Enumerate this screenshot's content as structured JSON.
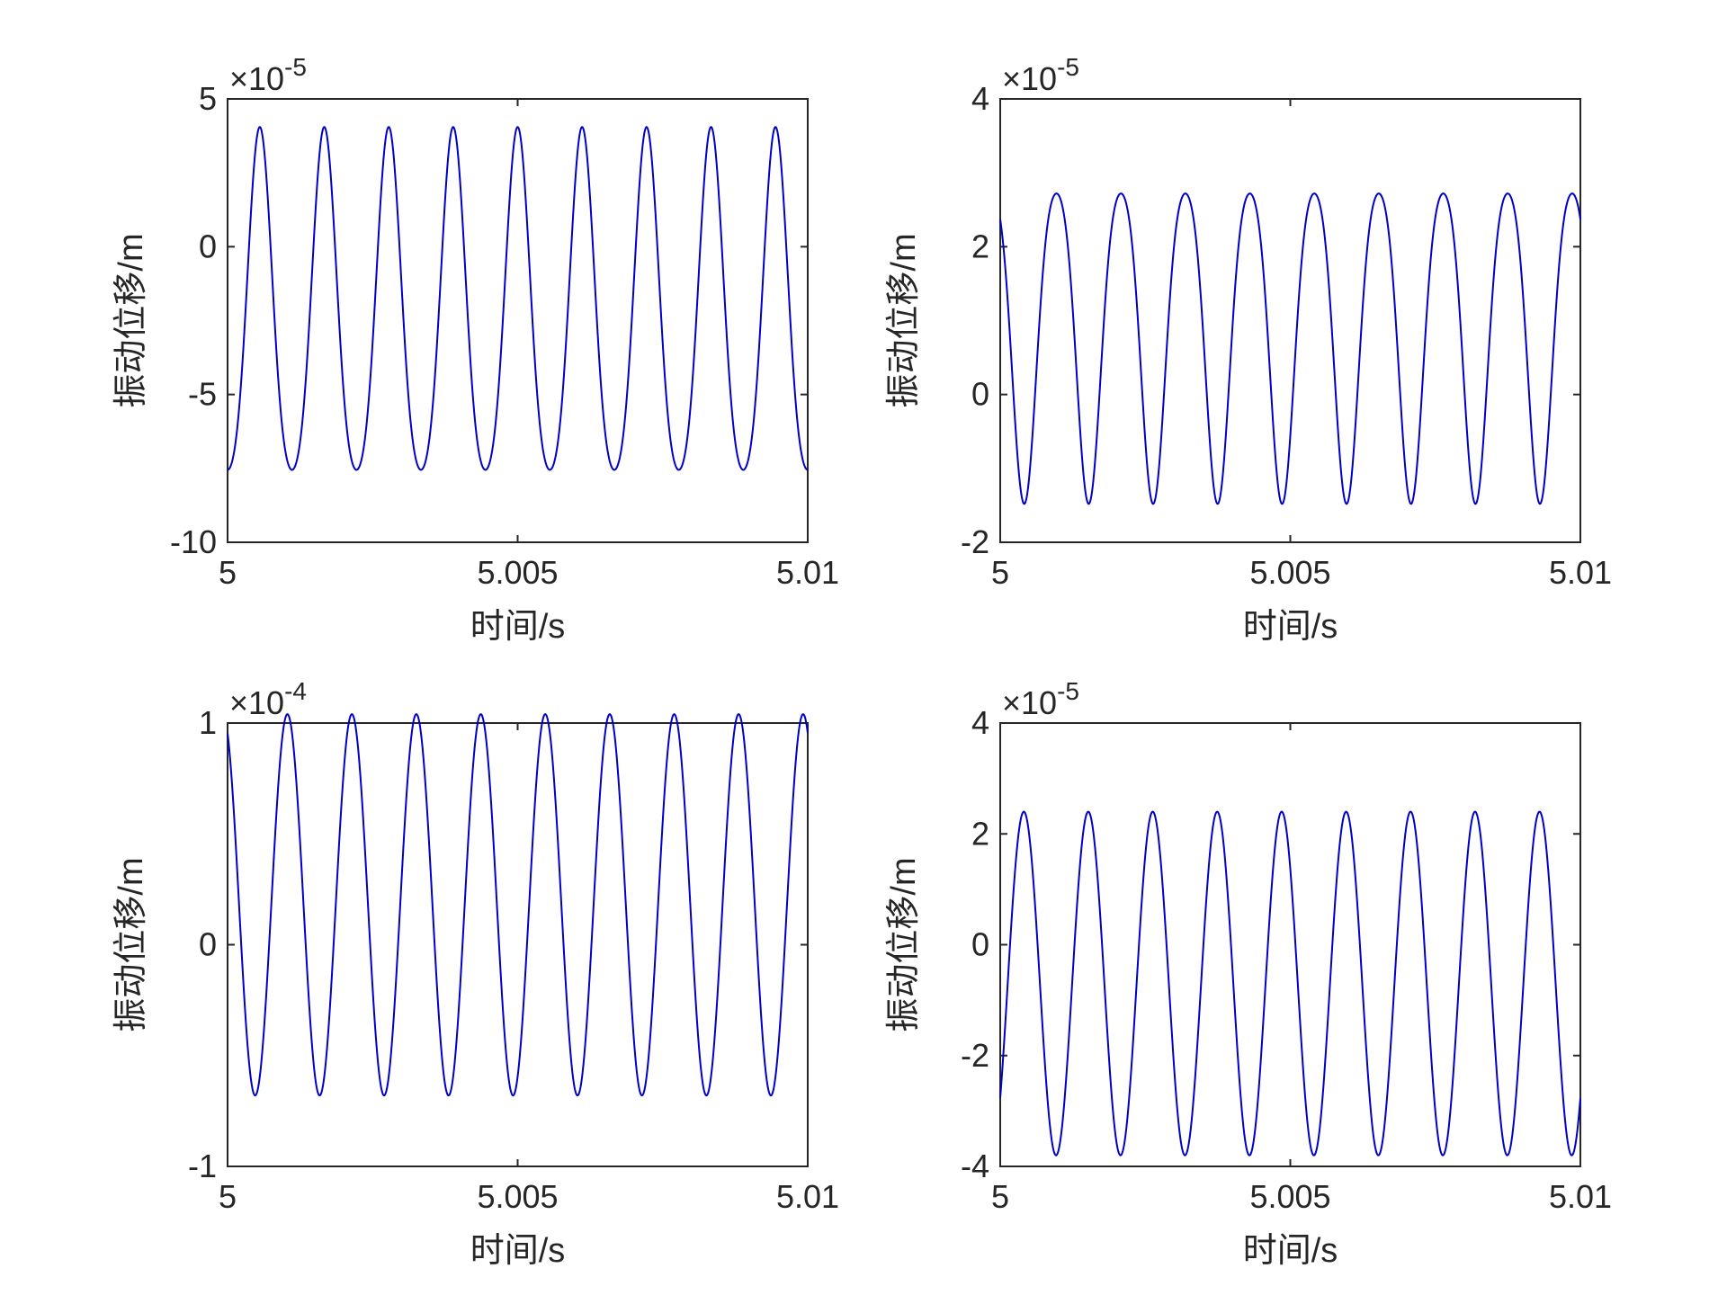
{
  "chart_data": [
    {
      "type": "line",
      "xlabel": "时间/s",
      "ylabel": "振动位移/m",
      "xlim": [
        5,
        5.01
      ],
      "ylim": [
        -10,
        5
      ],
      "x_ticks": [
        "5",
        "5.005",
        "5.01"
      ],
      "y_ticks": [
        "-10",
        "-5",
        "0",
        "5"
      ],
      "y_exponent": "-5",
      "series": [
        {
          "color": "#0000c8",
          "frequency_hz": 900,
          "mean": -2.5,
          "amplitude": 5.8,
          "harmonic2": 0.75,
          "harmonic_phase": 0,
          "phase": 3.14159,
          "peak_max": 3.5,
          "trough_min": -8.3
        }
      ]
    },
    {
      "type": "line",
      "xlabel": "时间/s",
      "ylabel": "振动位移/m",
      "xlim": [
        5,
        5.01
      ],
      "ylim": [
        -2,
        4
      ],
      "x_ticks": [
        "5",
        "5.005",
        "5.01"
      ],
      "y_ticks": [
        "-2",
        "0",
        "2",
        "4"
      ],
      "y_exponent": "-5",
      "series": [
        {
          "color": "#0000c8",
          "frequency_hz": 900,
          "mean": 0.9,
          "amplitude": 2.1,
          "harmonic2": -0.28,
          "harmonic_phase": 0,
          "phase": 0.8,
          "peak_max": 3.0,
          "trough_min": -1.3
        }
      ]
    },
    {
      "type": "line",
      "xlabel": "时间/s",
      "ylabel": "振动位移/m",
      "xlim": [
        5,
        5.01
      ],
      "ylim": [
        -1,
        1
      ],
      "x_ticks": [
        "5",
        "5.005",
        "5.01"
      ],
      "y_ticks": [
        "-1",
        "0",
        "1"
      ],
      "y_exponent": "-4",
      "series": [
        {
          "color": "#0000c8",
          "frequency_hz": 900,
          "mean": 0.18,
          "amplitude": 0.86,
          "harmonic2": 0,
          "harmonic_phase": 0,
          "phase": 0.45,
          "peak_max": 1.04,
          "trough_min": -0.68
        }
      ]
    },
    {
      "type": "line",
      "xlabel": "时间/s",
      "ylabel": "振动位移/m",
      "xlim": [
        5,
        5.01
      ],
      "ylim": [
        -4,
        4
      ],
      "x_ticks": [
        "5",
        "5.005",
        "5.01"
      ],
      "y_ticks": [
        "-4",
        "-2",
        "0",
        "2",
        "4"
      ],
      "y_exponent": "-5",
      "series": [
        {
          "color": "#0000c8",
          "frequency_hz": 900,
          "mean": -0.7,
          "amplitude": 3.1,
          "harmonic2": 0,
          "harmonic_phase": 0,
          "phase": -2.3,
          "peak_max": 2.4,
          "trough_min": -3.8
        }
      ]
    }
  ]
}
